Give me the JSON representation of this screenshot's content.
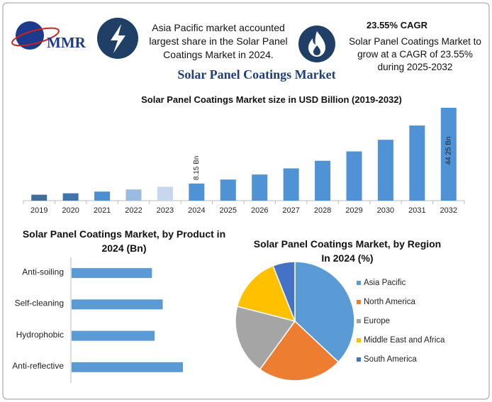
{
  "logo": "MMR",
  "header": {
    "share_text": "Asia Pacific market accounted largest share in the Solar Panel Coatings Market in 2024.",
    "cagr_title": "23.55% CAGR",
    "cagr_text": "Solar Panel Coatings Market to grow at a CAGR of 23.55% during 2025-2032"
  },
  "title": "Solar Panel Coatings Market",
  "chart_data": [
    {
      "type": "bar",
      "title": "Solar Panel Coatings Market size in USD Billion (2019-2032)",
      "categories": [
        "2019",
        "2020",
        "2021",
        "2022",
        "2023",
        "2024",
        "2025",
        "2026",
        "2027",
        "2028",
        "2029",
        "2030",
        "2031",
        "2032"
      ],
      "values": [
        2.83,
        3.5,
        4.32,
        5.34,
        6.6,
        8.15,
        10.07,
        12.44,
        15.37,
        18.99,
        23.46,
        28.99,
        35.81,
        44.25
      ],
      "value_labels": [
        null,
        null,
        null,
        null,
        null,
        "8.15 Bn",
        null,
        null,
        null,
        null,
        null,
        null,
        null,
        "44 25 Bn"
      ],
      "colors": [
        "#3f6d9c",
        "#3f74ae",
        "#4a8fd4",
        "#9bbbe2",
        "#c6d7ee",
        "#4f93d6",
        "#4f93d6",
        "#4f93d6",
        "#4f93d6",
        "#4f93d6",
        "#4f93d6",
        "#4f93d6",
        "#4f93d6",
        "#4f93d6"
      ]
    },
    {
      "type": "barh",
      "title": "Solar Panel Coatings Market, by Product in 2024 (Bn)",
      "categories": [
        "Anti-soiling",
        "Self-cleaning",
        "Hydrophobic",
        "Anti-reflective"
      ],
      "values": [
        1.79,
        2.03,
        1.85,
        2.48
      ],
      "color": "#5b9bd5"
    },
    {
      "type": "pie",
      "title": "Solar Panel Coatings Market, by Region In 2024 (%)",
      "categories": [
        "Asia Pacific",
        "North America",
        "Europe",
        "Middle East and Africa",
        "South America"
      ],
      "values": [
        37,
        23,
        19,
        15,
        6
      ],
      "colors": [
        "#5b9bd5",
        "#ed7d31",
        "#a5a5a5",
        "#ffc000",
        "#4472c4"
      ]
    }
  ]
}
